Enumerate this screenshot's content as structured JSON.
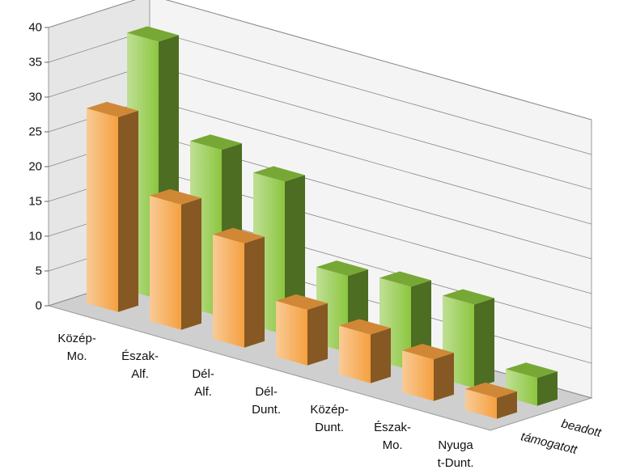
{
  "chart_data": {
    "type": "bar3d",
    "categories": [
      "Közép-\nMo.",
      "Észak-\nAlf.",
      "Dél-\nAlf.",
      "Dél-\nDunt.",
      "Közép-\nDunt.",
      "Észak-\nMo.",
      "Nyuga\nt-Dunt."
    ],
    "series": [
      {
        "name": "beadott",
        "color": "#8cc63f",
        "values": [
          37,
          24,
          22,
          11,
          12,
          12,
          4
        ]
      },
      {
        "name": "támogatott",
        "color": "#f5a040",
        "values": [
          28,
          18,
          15,
          8,
          7,
          6,
          3
        ]
      }
    ],
    "ylim": [
      0,
      40
    ],
    "yticks": [
      0,
      5,
      10,
      15,
      20,
      25,
      30,
      35,
      40
    ],
    "grid": true
  }
}
